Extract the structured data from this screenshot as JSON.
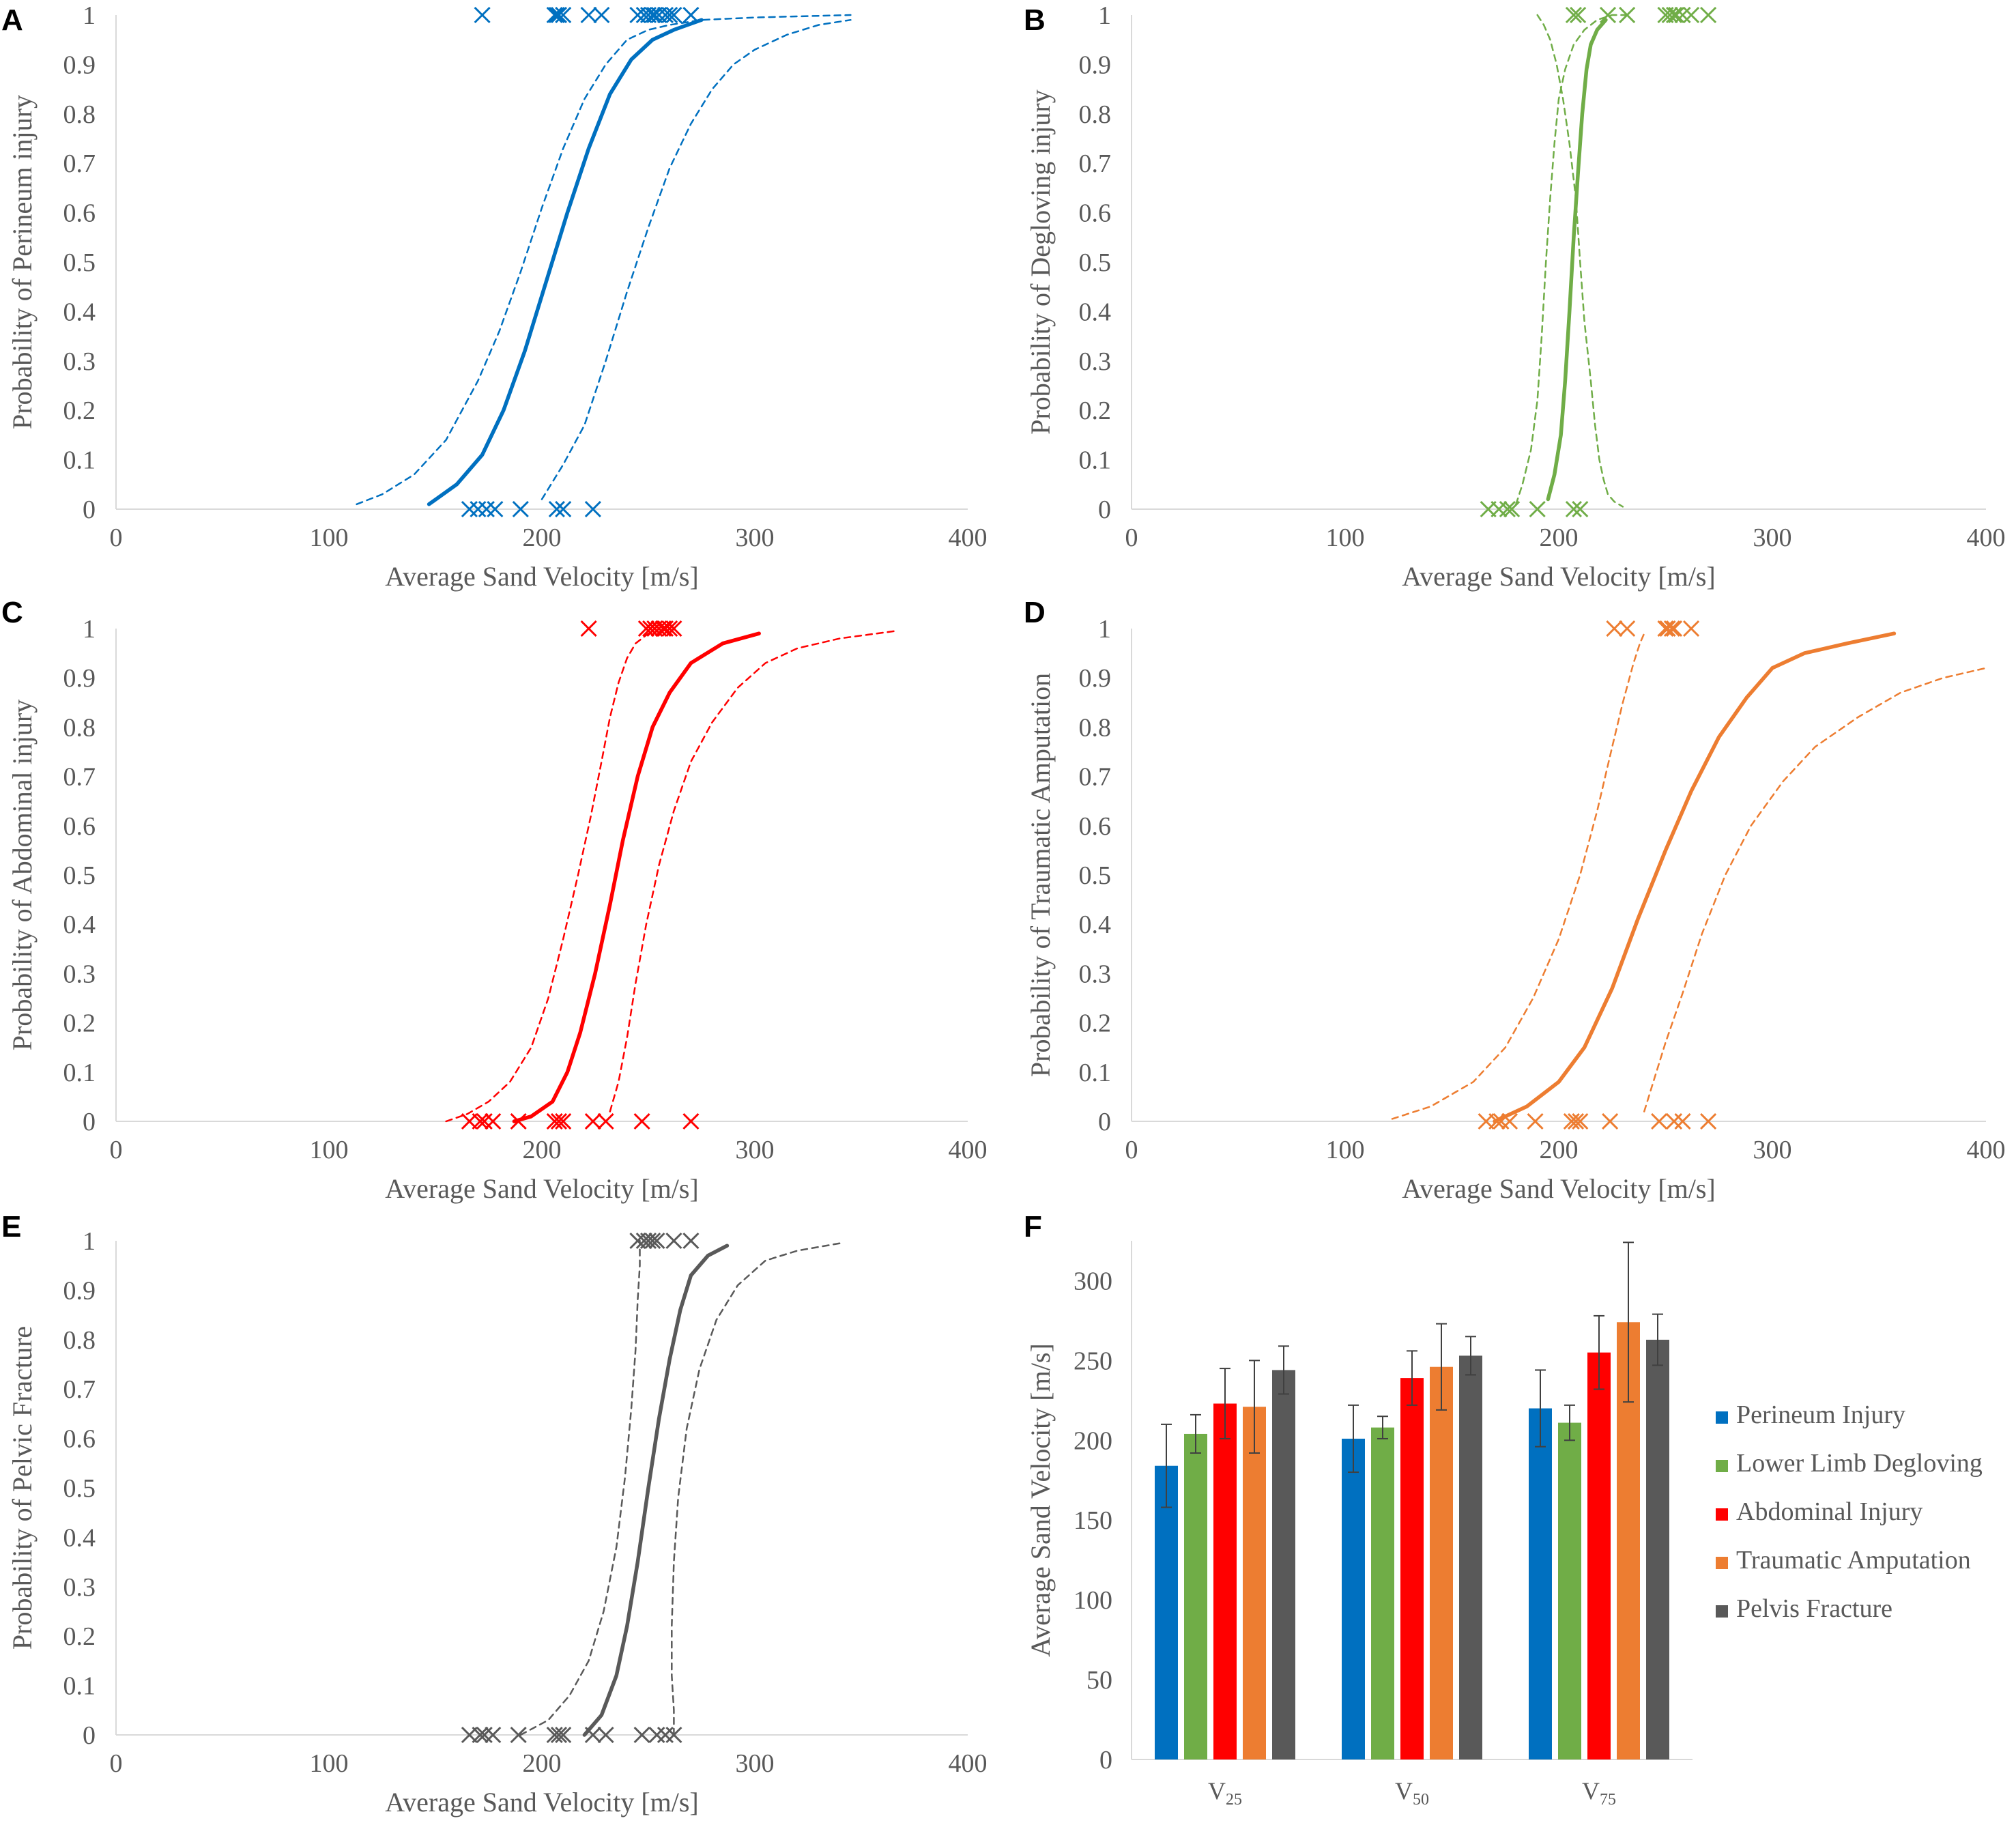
{
  "chart_data": [
    {
      "panel": "A",
      "type": "scatter+line",
      "xlabel": "Average Sand Velocity [m/s]",
      "ylabel": "Probability of Perineum injury",
      "xlim": [
        0,
        400
      ],
      "ylim": [
        0,
        1
      ],
      "xticks": [
        "0",
        "100",
        "200",
        "300",
        "400"
      ],
      "yticks": [
        "0",
        "0.1",
        "0.2",
        "0.3",
        "0.4",
        "0.5",
        "0.6",
        "0.7",
        "0.8",
        "0.9",
        "1"
      ],
      "color": "#0070C0",
      "curve": {
        "x": [
          147,
          160,
          172,
          182,
          192,
          202,
          212,
          222,
          232,
          242,
          252,
          262,
          275
        ],
        "y": [
          0.01,
          0.05,
          0.11,
          0.2,
          0.32,
          0.46,
          0.6,
          0.73,
          0.84,
          0.91,
          0.95,
          0.97,
          0.99
        ]
      },
      "upper_ci": {
        "x": [
          113,
          125,
          140,
          155,
          170,
          180,
          190,
          200,
          210,
          220,
          230,
          240,
          250,
          260,
          275,
          300,
          345
        ],
        "y": [
          0.01,
          0.03,
          0.07,
          0.14,
          0.26,
          0.36,
          0.48,
          0.61,
          0.73,
          0.83,
          0.9,
          0.95,
          0.97,
          0.98,
          0.99,
          0.995,
          1.0
        ]
      },
      "lower_ci": {
        "x": [
          200,
          210,
          220,
          230,
          240,
          250,
          260,
          270,
          280,
          290,
          300,
          315,
          330,
          345
        ],
        "y": [
          0.02,
          0.09,
          0.17,
          0.3,
          0.44,
          0.57,
          0.69,
          0.78,
          0.85,
          0.9,
          0.93,
          0.96,
          0.98,
          0.99
        ]
      },
      "obs_x_at_1": [
        172,
        206,
        207,
        208,
        210,
        222,
        228,
        245,
        248,
        250,
        252,
        253,
        255,
        258,
        260,
        262,
        270
      ],
      "obs_x_at_0": [
        166,
        170,
        174,
        178,
        190,
        207,
        210,
        224
      ]
    },
    {
      "panel": "B",
      "type": "scatter+line",
      "xlabel": "Average Sand Velocity [m/s]",
      "ylabel": "Probability of Degloving injury",
      "xlim": [
        0,
        400
      ],
      "ylim": [
        0,
        1
      ],
      "xticks": [
        "0",
        "100",
        "200",
        "300",
        "400"
      ],
      "yticks": [
        "0",
        "0.1",
        "0.2",
        "0.3",
        "0.4",
        "0.5",
        "0.6",
        "0.7",
        "0.8",
        "0.9",
        "1"
      ],
      "color": "#70AD47",
      "curve": {
        "x": [
          195,
          198,
          201,
          203,
          205,
          207,
          209,
          211,
          213,
          215,
          218,
          222
        ],
        "y": [
          0.02,
          0.07,
          0.15,
          0.26,
          0.4,
          0.55,
          0.68,
          0.8,
          0.89,
          0.94,
          0.97,
          0.99
        ]
      },
      "upper_ci": {
        "x": [
          180,
          183,
          187,
          190,
          192,
          194,
          196,
          198,
          200,
          203,
          207,
          212,
          218,
          225,
          232
        ],
        "y": [
          0.01,
          0.05,
          0.12,
          0.22,
          0.35,
          0.5,
          0.63,
          0.74,
          0.83,
          0.89,
          0.94,
          0.97,
          0.99,
          1.0,
          1.0
        ]
      },
      "lower_ci": {
        "x": [
          190,
          193,
          196,
          199,
          202,
          205,
          208,
          210,
          212,
          215,
          217,
          219,
          221,
          223,
          226,
          230
        ],
        "y": [
          1.0,
          0.98,
          0.95,
          0.9,
          0.83,
          0.74,
          0.63,
          0.5,
          0.38,
          0.26,
          0.17,
          0.1,
          0.06,
          0.03,
          0.015,
          0.005
        ]
      },
      "obs_x_at_1": [
        207,
        209,
        223,
        232,
        250,
        252,
        254,
        255,
        258,
        262,
        270
      ],
      "obs_x_at_0": [
        167,
        172,
        176,
        178,
        190,
        207,
        210
      ]
    },
    {
      "panel": "C",
      "type": "scatter+line",
      "xlabel": "Average Sand Velocity [m/s]",
      "ylabel": "Probability of Abdominal injury",
      "xlim": [
        0,
        400
      ],
      "ylim": [
        0,
        1
      ],
      "xticks": [
        "0",
        "100",
        "200",
        "300",
        "400"
      ],
      "yticks": [
        "0",
        "0.1",
        "0.2",
        "0.3",
        "0.4",
        "0.5",
        "0.6",
        "0.7",
        "0.8",
        "0.9",
        "1"
      ],
      "color": "#FF0000",
      "curve": {
        "x": [
          187,
          195,
          205,
          212,
          218,
          225,
          232,
          238,
          245,
          252,
          260,
          270,
          285,
          302
        ],
        "y": [
          0.0,
          0.01,
          0.04,
          0.1,
          0.18,
          0.3,
          0.44,
          0.57,
          0.7,
          0.8,
          0.87,
          0.93,
          0.97,
          0.99
        ]
      },
      "upper_ci": {
        "x": [
          155,
          165,
          175,
          185,
          195,
          203,
          210,
          217,
          223,
          228,
          232,
          236,
          240,
          244,
          250
        ],
        "y": [
          0.0,
          0.015,
          0.04,
          0.08,
          0.15,
          0.25,
          0.37,
          0.5,
          0.62,
          0.73,
          0.82,
          0.89,
          0.94,
          0.97,
          0.99
        ]
      },
      "lower_ci": {
        "x": [
          232,
          236,
          240,
          244,
          249,
          255,
          262,
          270,
          280,
          292,
          305,
          320,
          340,
          366
        ],
        "y": [
          0.02,
          0.08,
          0.17,
          0.28,
          0.4,
          0.52,
          0.63,
          0.73,
          0.81,
          0.88,
          0.93,
          0.96,
          0.98,
          0.995
        ]
      },
      "obs_x_at_1": [
        222,
        249,
        251,
        253,
        255,
        257,
        258,
        260,
        262
      ],
      "obs_x_at_0": [
        166,
        171,
        173,
        177,
        189,
        206,
        208,
        210,
        224,
        230,
        247,
        270
      ]
    },
    {
      "panel": "D",
      "type": "scatter+line",
      "xlabel": "Average Sand Velocity [m/s]",
      "ylabel": "Probability of Traumatic Amputation",
      "xlim": [
        0,
        400
      ],
      "ylim": [
        0,
        1
      ],
      "xticks": [
        "0",
        "100",
        "200",
        "300",
        "400"
      ],
      "yticks": [
        "0",
        "0.1",
        "0.2",
        "0.3",
        "0.4",
        "0.5",
        "0.6",
        "0.7",
        "0.8",
        "0.9",
        "1"
      ],
      "color": "#ED7D31",
      "curve": {
        "x": [
          170,
          185,
          200,
          212,
          225,
          237,
          250,
          262,
          275,
          288,
          300,
          315,
          335,
          357
        ],
        "y": [
          0.0,
          0.03,
          0.08,
          0.15,
          0.27,
          0.41,
          0.55,
          0.67,
          0.78,
          0.86,
          0.92,
          0.95,
          0.97,
          0.99
        ]
      },
      "upper_ci": {
        "x": [
          122,
          140,
          160,
          175,
          188,
          200,
          210,
          218,
          225,
          230,
          235,
          238,
          240
        ],
        "y": [
          0.005,
          0.03,
          0.08,
          0.15,
          0.25,
          0.37,
          0.5,
          0.63,
          0.76,
          0.85,
          0.93,
          0.97,
          0.99
        ]
      },
      "lower_ci": {
        "x": [
          240,
          245,
          250,
          258,
          267,
          278,
          290,
          305,
          320,
          340,
          360,
          380,
          400
        ],
        "y": [
          0.02,
          0.09,
          0.16,
          0.26,
          0.38,
          0.5,
          0.6,
          0.69,
          0.76,
          0.82,
          0.87,
          0.9,
          0.92
        ]
      },
      "obs_x_at_1": [
        226,
        232,
        250,
        251,
        253,
        254,
        262
      ],
      "obs_x_at_0": [
        166,
        171,
        173,
        177,
        189,
        206,
        208,
        210,
        224,
        247,
        254,
        258,
        270
      ]
    },
    {
      "panel": "E",
      "type": "scatter+line",
      "xlabel": "Average Sand Velocity [m/s]",
      "ylabel": "Probability of Pelvic Fracture",
      "xlim": [
        0,
        400
      ],
      "ylim": [
        0,
        1
      ],
      "xticks": [
        "0",
        "100",
        "200",
        "300",
        "400"
      ],
      "yticks": [
        "0",
        "0.1",
        "0.2",
        "0.3",
        "0.4",
        "0.5",
        "0.6",
        "0.7",
        "0.8",
        "0.9",
        "1"
      ],
      "color": "#595959",
      "curve": {
        "x": [
          220,
          228,
          235,
          240,
          245,
          250,
          255,
          260,
          265,
          270,
          278,
          287
        ],
        "y": [
          0.0,
          0.04,
          0.12,
          0.22,
          0.35,
          0.5,
          0.64,
          0.76,
          0.86,
          0.93,
          0.97,
          0.99
        ]
      },
      "upper_ci": {
        "x": [
          190,
          203,
          213,
          222,
          229,
          235,
          239,
          242,
          244,
          245,
          246,
          246
        ],
        "y": [
          0.0,
          0.03,
          0.08,
          0.15,
          0.25,
          0.38,
          0.52,
          0.66,
          0.78,
          0.88,
          0.95,
          1.0
        ]
      },
      "lower_ci": {
        "x": [
          262,
          262,
          261,
          261,
          262,
          264,
          268,
          274,
          282,
          292,
          305,
          320,
          340
        ],
        "y": [
          0.0,
          0.05,
          0.12,
          0.22,
          0.35,
          0.48,
          0.62,
          0.74,
          0.84,
          0.91,
          0.96,
          0.98,
          0.995
        ]
      },
      "obs_x_at_1": [
        245,
        248,
        250,
        252,
        254,
        262,
        270
      ],
      "obs_x_at_0": [
        166,
        171,
        173,
        177,
        189,
        206,
        208,
        210,
        224,
        230,
        247,
        254,
        258,
        262
      ]
    },
    {
      "panel": "F",
      "type": "bar",
      "ylabel": "Average Sand Velocity [m/s]",
      "ylim": [
        0,
        325
      ],
      "yticks": [
        "0",
        "50",
        "100",
        "150",
        "200",
        "250",
        "300"
      ],
      "categories": [
        {
          "main": "V",
          "sub": "25"
        },
        {
          "main": "V",
          "sub": "50"
        },
        {
          "main": "V",
          "sub": "75"
        }
      ],
      "series": [
        {
          "name": "Perineum Injury",
          "color": "#0070C0",
          "values": [
            184,
            201,
            220
          ],
          "err": [
            26,
            21,
            24
          ]
        },
        {
          "name": "Lower Limb Degloving",
          "color": "#70AD47",
          "values": [
            204,
            208,
            211
          ],
          "err": [
            12,
            7,
            11
          ]
        },
        {
          "name": "Abdominal Injury",
          "color": "#FF0000",
          "values": [
            223,
            239,
            255
          ],
          "err": [
            22,
            17,
            23
          ]
        },
        {
          "name": "Traumatic Amputation",
          "color": "#ED7D31",
          "values": [
            221,
            246,
            274
          ],
          "err": [
            29,
            27,
            50
          ]
        },
        {
          "name": "Pelvis Fracture",
          "color": "#595959",
          "values": [
            244,
            253,
            263
          ],
          "err": [
            15,
            12,
            16
          ]
        }
      ]
    }
  ]
}
